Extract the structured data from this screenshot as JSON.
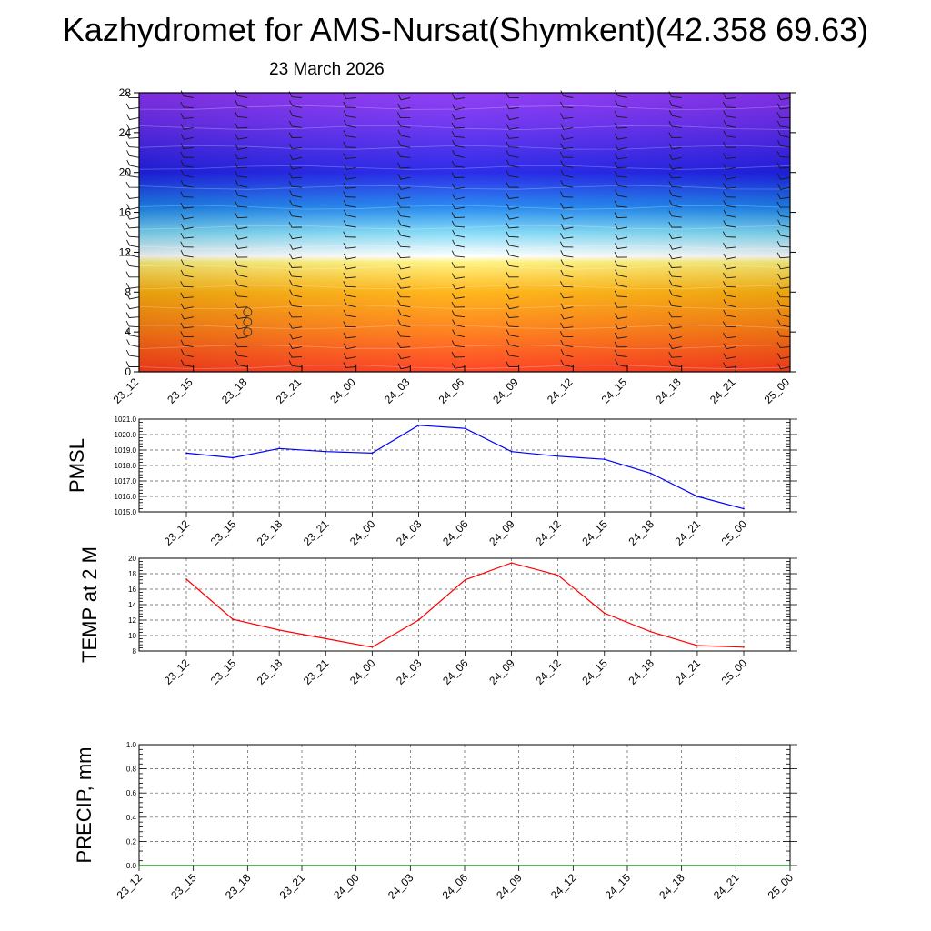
{
  "header": {
    "title": "Kazhydromet for AMS-Nursat(Shymkent)(42.358 69.63)",
    "subtitle": "23 March 2026"
  },
  "chart_data": [
    {
      "type": "heatmap",
      "title": "",
      "xlabel": "",
      "ylabel": "",
      "x": [
        "23_12",
        "23_15",
        "23_18",
        "23_21",
        "24_00",
        "24_03",
        "24_06",
        "24_09",
        "24_12",
        "24_15",
        "24_18",
        "24_21",
        "25_00"
      ],
      "ylim": [
        0,
        28
      ],
      "yticks": [
        0,
        4,
        8,
        12,
        16,
        20,
        24,
        28
      ],
      "grid": false,
      "colormap": [
        "#ff3a1c",
        "#ff7a14",
        "#ffb20f",
        "#fff27a",
        "#ffffff",
        "#7ed9f6",
        "#1e86f0",
        "#1f20e8",
        "#6a2ef0",
        "#8c33f4"
      ],
      "colormap_levels": [
        0,
        4,
        8,
        11,
        11.6,
        14,
        16.5,
        20,
        25,
        28
      ],
      "wind_barb_levels": [
        0,
        1,
        2,
        3,
        4,
        5,
        6,
        7,
        8,
        9,
        10,
        11,
        12,
        13,
        14,
        15,
        16,
        17,
        18,
        19,
        20,
        21,
        22,
        23,
        24,
        25,
        26,
        27
      ],
      "markers": [
        {
          "x": "23_18",
          "levels": [
            4,
            5,
            6
          ],
          "shape": "circle"
        }
      ]
    },
    {
      "type": "line",
      "title": "",
      "xlabel": "",
      "ylabel": "PMSL",
      "x": [
        "23_12",
        "23_15",
        "23_18",
        "23_21",
        "24_00",
        "24_03",
        "24_06",
        "24_09",
        "24_12",
        "24_15",
        "24_18",
        "24_21",
        "25_00"
      ],
      "series": [
        {
          "values": [
            1018.8,
            1018.5,
            1019.1,
            1018.9,
            1018.8,
            1020.6,
            1020.4,
            1018.9,
            1018.6,
            1018.4,
            1017.5,
            1016.0,
            1015.2
          ],
          "color": "#0000ff"
        }
      ],
      "ylim": [
        1015.0,
        1021.0
      ],
      "yticks": [
        "1015.0",
        "1016.0",
        "1017.0",
        "1018.0",
        "1019.0",
        "1020.0",
        "1021.0"
      ],
      "grid": true
    },
    {
      "type": "line",
      "title": "",
      "xlabel": "",
      "ylabel": "TEMP at 2 M",
      "x": [
        "23_12",
        "23_15",
        "23_18",
        "23_21",
        "24_00",
        "24_03",
        "24_06",
        "24_09",
        "24_12",
        "24_15",
        "24_18",
        "24_21",
        "25_00"
      ],
      "series": [
        {
          "values": [
            17.3,
            12.1,
            10.7,
            9.6,
            8.5,
            12.0,
            17.2,
            19.4,
            17.8,
            12.9,
            10.5,
            8.7,
            8.5
          ],
          "color": "#ff0000"
        }
      ],
      "ylim": [
        8,
        20
      ],
      "yticks": [
        "8",
        "10",
        "12",
        "14",
        "16",
        "18",
        "20"
      ],
      "grid": true
    },
    {
      "type": "line",
      "title": "",
      "xlabel": "",
      "ylabel": "PRECIP, mm",
      "x": [
        "23_12",
        "23_15",
        "23_18",
        "23_21",
        "24_00",
        "24_03",
        "24_06",
        "24_09",
        "24_12",
        "24_15",
        "24_18",
        "24_21",
        "25_00"
      ],
      "series": [
        {
          "values": [
            0,
            0,
            0,
            0,
            0,
            0,
            0,
            0,
            0,
            0,
            0,
            0,
            0
          ],
          "color": "#008000"
        }
      ],
      "ylim": [
        0,
        1
      ],
      "yticks": [
        "0.0",
        "0.2",
        "0.4",
        "0.6",
        "0.8",
        "1.0"
      ],
      "grid": true
    }
  ]
}
